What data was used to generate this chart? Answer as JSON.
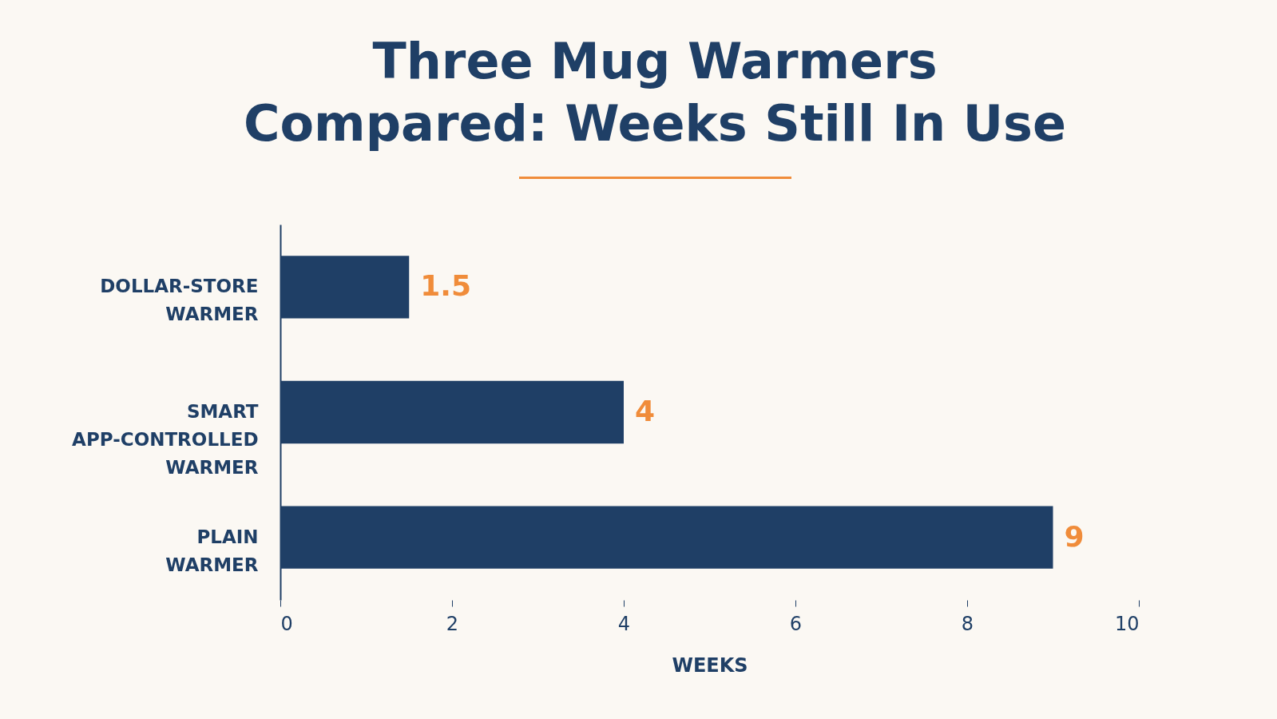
{
  "chart_data": {
    "type": "bar",
    "orientation": "horizontal",
    "title": "Three Mug Warmers Compared: Weeks Still In Use",
    "xlabel": "WEEKS",
    "categories": [
      "DOLLAR-STORE WARMER",
      "SMART APP-CONTROLLED WARMER",
      "PLAIN WARMER"
    ],
    "values": [
      1.5,
      4,
      9
    ],
    "color": "#1f3f66",
    "data_labels": true,
    "xlim": [
      0,
      10
    ],
    "xticks": [
      0,
      2,
      4,
      6,
      8,
      10
    ],
    "grid": false
  }
}
